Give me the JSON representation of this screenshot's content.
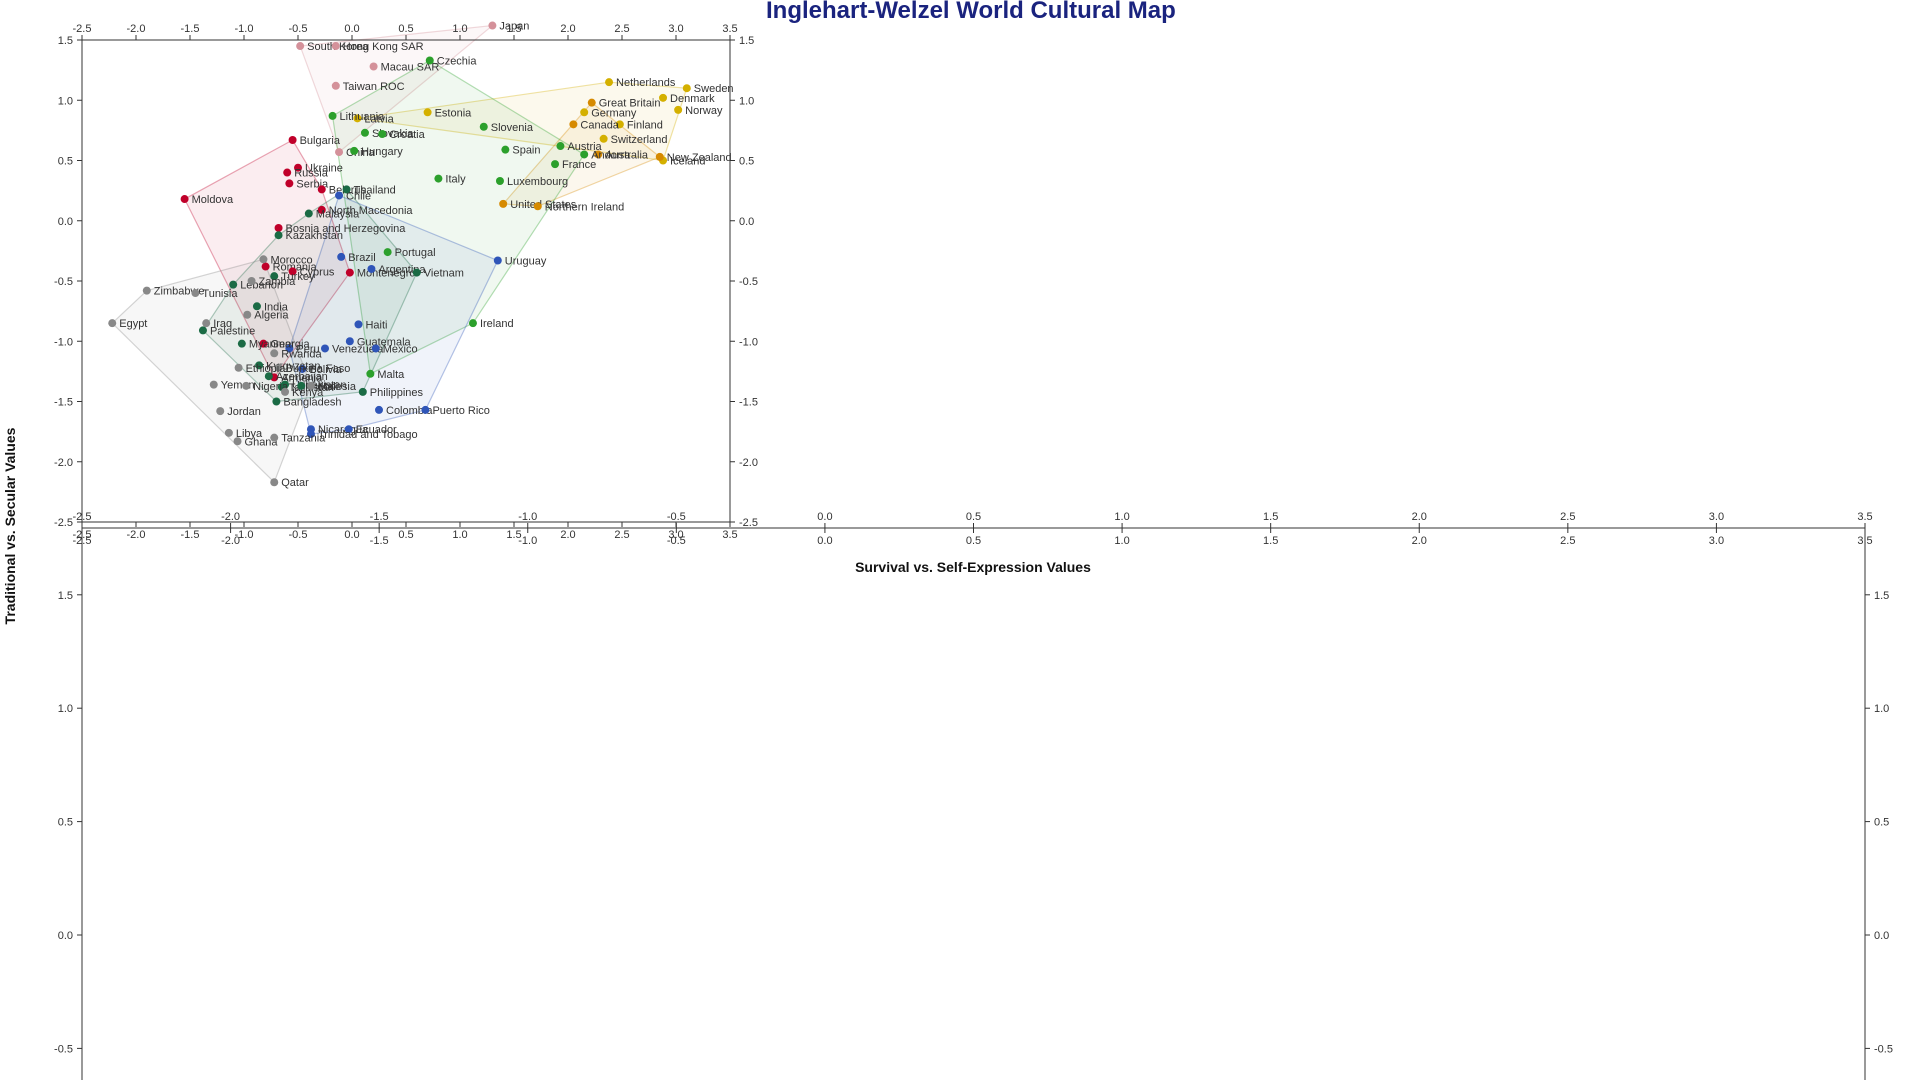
{
  "chart_data": {
    "type": "scatter",
    "title": "Inglehart-Welzel World Cultural Map",
    "xlabel": "Survival vs. Self-Expression Values",
    "ylabel": "Traditional vs. Secular Values",
    "xlim": [
      -2.5,
      3.5
    ],
    "ylim": [
      -2.5,
      1.5
    ],
    "x_ticks": [
      "-2.5",
      "-2.0",
      "-1.5",
      "-1.0",
      "-0.5",
      "0.0",
      "0.5",
      "1.0",
      "1.5",
      "2.0",
      "2.5",
      "3.0",
      "3.5"
    ],
    "y_ticks": [
      "-2.5",
      "-2.0",
      "-1.5",
      "-1.0",
      "-0.5",
      "0.0",
      "0.5",
      "1.0",
      "1.5"
    ],
    "colors": {
      "confucian": "#d4919a",
      "protestant_europe": "#d4b000",
      "english_speaking": "#d68a00",
      "catholic_europe": "#2ca02c",
      "orthodox_europe": "#c0002a",
      "latin_america": "#2f55b8",
      "west_south_asia": "#1b6b45",
      "african_islamic": "#888888"
    },
    "series": [
      {
        "color_key": "confucian",
        "points": [
          {
            "label": "Japan",
            "x": 1.3,
            "y": 1.62
          },
          {
            "label": "South Korea",
            "x": -0.48,
            "y": 1.45
          },
          {
            "label": "Hong Kong SAR",
            "x": -0.15,
            "y": 1.45
          },
          {
            "label": "Macau SAR",
            "x": 0.2,
            "y": 1.28
          },
          {
            "label": "Taiwan ROC",
            "x": -0.15,
            "y": 1.12
          },
          {
            "label": "China",
            "x": -0.12,
            "y": 0.57
          }
        ]
      },
      {
        "color_key": "protestant_europe",
        "points": [
          {
            "label": "Netherlands",
            "x": 2.38,
            "y": 1.15
          },
          {
            "label": "Sweden",
            "x": 3.1,
            "y": 1.1
          },
          {
            "label": "Denmark",
            "x": 2.88,
            "y": 1.02
          },
          {
            "label": "Norway",
            "x": 3.02,
            "y": 0.92
          },
          {
            "label": "Germany",
            "x": 2.15,
            "y": 0.9
          },
          {
            "label": "Finland",
            "x": 2.48,
            "y": 0.8
          },
          {
            "label": "Switzerland",
            "x": 2.33,
            "y": 0.68
          },
          {
            "label": "Iceland",
            "x": 2.88,
            "y": 0.5
          },
          {
            "label": "Estonia",
            "x": 0.7,
            "y": 0.9
          },
          {
            "label": "Latvia",
            "x": 0.05,
            "y": 0.85
          }
        ]
      },
      {
        "color_key": "english_speaking",
        "points": [
          {
            "label": "Great Britain",
            "x": 2.22,
            "y": 0.98
          },
          {
            "label": "Canada",
            "x": 2.05,
            "y": 0.8
          },
          {
            "label": "Australia",
            "x": 2.28,
            "y": 0.55
          },
          {
            "label": "New Zealand",
            "x": 2.85,
            "y": 0.53
          },
          {
            "label": "United States",
            "x": 1.4,
            "y": 0.14
          },
          {
            "label": "Northern Ireland",
            "x": 1.72,
            "y": 0.12
          }
        ]
      },
      {
        "color_key": "catholic_europe",
        "points": [
          {
            "label": "Czechia",
            "x": 0.72,
            "y": 1.33
          },
          {
            "label": "Lithuania",
            "x": -0.18,
            "y": 0.87
          },
          {
            "label": "Slovakia",
            "x": 0.12,
            "y": 0.73
          },
          {
            "label": "Slovenia",
            "x": 1.22,
            "y": 0.78
          },
          {
            "label": "Croatia",
            "x": 0.28,
            "y": 0.72
          },
          {
            "label": "Hungary",
            "x": 0.02,
            "y": 0.58
          },
          {
            "label": "Austria",
            "x": 1.93,
            "y": 0.62
          },
          {
            "label": "Spain",
            "x": 1.42,
            "y": 0.59
          },
          {
            "label": "France",
            "x": 1.88,
            "y": 0.47
          },
          {
            "label": "Italy",
            "x": 0.8,
            "y": 0.35
          },
          {
            "label": "Luxembourg",
            "x": 1.37,
            "y": 0.33
          },
          {
            "label": "Andorra",
            "x": 2.15,
            "y": 0.55
          },
          {
            "label": "Portugal",
            "x": 0.33,
            "y": -0.26
          },
          {
            "label": "Malta",
            "x": 0.17,
            "y": -1.27
          },
          {
            "label": "Ireland",
            "x": 1.12,
            "y": -0.85
          }
        ]
      },
      {
        "color_key": "orthodox_europe",
        "points": [
          {
            "label": "Bulgaria",
            "x": -0.55,
            "y": 0.67
          },
          {
            "label": "Ukraine",
            "x": -0.5,
            "y": 0.44
          },
          {
            "label": "Russia",
            "x": -0.6,
            "y": 0.4
          },
          {
            "label": "Serbia",
            "x": -0.58,
            "y": 0.31
          },
          {
            "label": "Belarus",
            "x": -0.28,
            "y": 0.26
          },
          {
            "label": "Moldova",
            "x": -1.55,
            "y": 0.18
          },
          {
            "label": "North Macedonia",
            "x": -0.28,
            "y": 0.09
          },
          {
            "label": "Bosnia and Herzegovina",
            "x": -0.68,
            "y": -0.06
          },
          {
            "label": "Romania",
            "x": -0.8,
            "y": -0.38
          },
          {
            "label": "Cyprus",
            "x": -0.55,
            "y": -0.42
          },
          {
            "label": "Montenegro",
            "x": -0.02,
            "y": -0.43
          },
          {
            "label": "Armenia",
            "x": -0.72,
            "y": -1.3
          },
          {
            "label": "Georgia",
            "x": -0.82,
            "y": -1.02
          }
        ]
      },
      {
        "color_key": "latin_america",
        "points": [
          {
            "label": "Chile",
            "x": -0.12,
            "y": 0.21
          },
          {
            "label": "Brazil",
            "x": -0.1,
            "y": -0.3
          },
          {
            "label": "Argentina",
            "x": 0.18,
            "y": -0.4
          },
          {
            "label": "Uruguay",
            "x": 1.35,
            "y": -0.33
          },
          {
            "label": "Haiti",
            "x": 0.06,
            "y": -0.86
          },
          {
            "label": "Guatemala",
            "x": -0.02,
            "y": -1.0
          },
          {
            "label": "Venezuela",
            "x": -0.25,
            "y": -1.06
          },
          {
            "label": "Mexico",
            "x": 0.22,
            "y": -1.06
          },
          {
            "label": "Bolivia",
            "x": -0.46,
            "y": -1.23
          },
          {
            "label": "Colombia",
            "x": 0.25,
            "y": -1.57
          },
          {
            "label": "Puerto Rico",
            "x": 0.68,
            "y": -1.57
          },
          {
            "label": "Peru",
            "x": -0.58,
            "y": -1.06
          },
          {
            "label": "Nicaragua",
            "x": -0.38,
            "y": -1.73
          },
          {
            "label": "Ecuador",
            "x": -0.03,
            "y": -1.73
          },
          {
            "label": "Trinidad and Tobago",
            "x": -0.38,
            "y": -1.77
          }
        ]
      },
      {
        "color_key": "west_south_asia",
        "points": [
          {
            "label": "Thailand",
            "x": -0.05,
            "y": 0.26
          },
          {
            "label": "Malaysia",
            "x": -0.4,
            "y": 0.06
          },
          {
            "label": "Kazakhstan",
            "x": -0.68,
            "y": -0.12
          },
          {
            "label": "Vietnam",
            "x": 0.6,
            "y": -0.43
          },
          {
            "label": "Turkey",
            "x": -0.72,
            "y": -0.46
          },
          {
            "label": "Lebanon",
            "x": -1.1,
            "y": -0.53
          },
          {
            "label": "India",
            "x": -0.88,
            "y": -0.71
          },
          {
            "label": "Palestine",
            "x": -1.38,
            "y": -0.91
          },
          {
            "label": "Myanmar",
            "x": -1.02,
            "y": -1.02
          },
          {
            "label": "Kyrgyzstan",
            "x": -0.86,
            "y": -1.2
          },
          {
            "label": "Azerbaijan",
            "x": -0.77,
            "y": -1.29
          },
          {
            "label": "Tajikistan",
            "x": -0.65,
            "y": -1.38
          },
          {
            "label": "Uzbekistan",
            "x": -0.62,
            "y": -1.36
          },
          {
            "label": "Bangladesh",
            "x": -0.7,
            "y": -1.5
          },
          {
            "label": "Philippines",
            "x": 0.1,
            "y": -1.42
          },
          {
            "label": "Indonesia",
            "x": -0.47,
            "y": -1.37
          }
        ]
      },
      {
        "color_key": "african_islamic",
        "points": [
          {
            "label": "Morocco",
            "x": -0.82,
            "y": -0.32
          },
          {
            "label": "Zambia",
            "x": -0.93,
            "y": -0.5
          },
          {
            "label": "Zimbabwe",
            "x": -1.9,
            "y": -0.58
          },
          {
            "label": "Tunisia",
            "x": -1.45,
            "y": -0.6
          },
          {
            "label": "Egypt",
            "x": -2.22,
            "y": -0.85
          },
          {
            "label": "Iraq",
            "x": -1.35,
            "y": -0.85
          },
          {
            "label": "Algeria",
            "x": -0.97,
            "y": -0.78
          },
          {
            "label": "Rwanda",
            "x": -0.72,
            "y": -1.1
          },
          {
            "label": "Burkina Faso",
            "x": -0.68,
            "y": -1.22
          },
          {
            "label": "Ethiopia",
            "x": -1.05,
            "y": -1.22
          },
          {
            "label": "Mali",
            "x": -0.38,
            "y": -1.37
          },
          {
            "label": "Yemen",
            "x": -1.28,
            "y": -1.36
          },
          {
            "label": "Nigeria",
            "x": -0.98,
            "y": -1.37
          },
          {
            "label": "Kenya",
            "x": -0.62,
            "y": -1.42
          },
          {
            "label": "Jordan",
            "x": -1.22,
            "y": -1.58
          },
          {
            "label": "Libya",
            "x": -1.14,
            "y": -1.76
          },
          {
            "label": "Ghana",
            "x": -1.06,
            "y": -1.83
          },
          {
            "label": "Tanzania",
            "x": -0.72,
            "y": -1.8
          },
          {
            "label": "Qatar",
            "x": -0.72,
            "y": -2.17
          }
        ]
      }
    ]
  }
}
